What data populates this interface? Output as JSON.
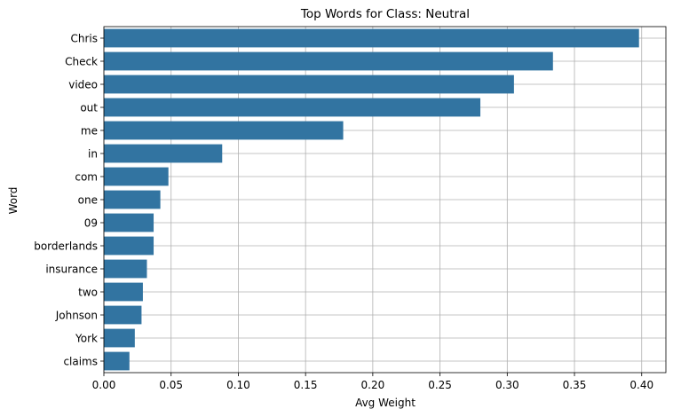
{
  "chart_data": {
    "type": "bar",
    "orientation": "horizontal",
    "title": "Top Words for Class: Neutral",
    "xlabel": "Avg Weight",
    "ylabel": "Word",
    "categories": [
      "Chris",
      "Check",
      "video",
      "out",
      "me",
      "in",
      "com",
      "one",
      "09",
      "borderlands",
      "insurance",
      "two",
      "Johnson",
      "York",
      "claims"
    ],
    "values": [
      0.398,
      0.334,
      0.305,
      0.28,
      0.178,
      0.088,
      0.048,
      0.042,
      0.037,
      0.037,
      0.032,
      0.029,
      0.028,
      0.023,
      0.019
    ],
    "xlim": [
      0,
      0.418
    ],
    "xticks": [
      0.0,
      0.05,
      0.1,
      0.15,
      0.2,
      0.25,
      0.3,
      0.35,
      0.4
    ],
    "xtick_labels": [
      "0.00",
      "0.05",
      "0.10",
      "0.15",
      "0.20",
      "0.25",
      "0.30",
      "0.35",
      "0.40"
    ],
    "grid": true,
    "bar_color": "#3274a1"
  }
}
